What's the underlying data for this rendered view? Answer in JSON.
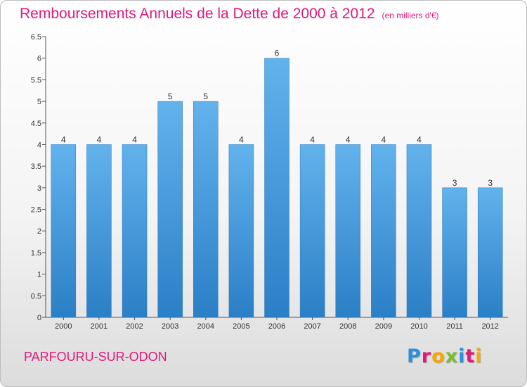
{
  "header": {
    "title": "Remboursements Annuels de la Dette de 2000 à 2012",
    "unit": "(en milliers d'€)"
  },
  "footer": {
    "city": "PARFOURU-SUR-ODON",
    "logo_letters": [
      "P",
      "r",
      "o",
      "x",
      "i",
      "t",
      "i"
    ],
    "logo_colors": [
      "#2f8fd8",
      "#e0197d",
      "#f5a800",
      "#7bbf2a",
      "#2f8fd8",
      "#e0197d",
      "#f5a800"
    ]
  },
  "chart_data": {
    "type": "bar",
    "categories": [
      "2000",
      "2001",
      "2002",
      "2003",
      "2004",
      "2005",
      "2006",
      "2007",
      "2008",
      "2009",
      "2010",
      "2011",
      "2012"
    ],
    "values": [
      4,
      4,
      4,
      5,
      5,
      4,
      6,
      4,
      4,
      4,
      4,
      3,
      3
    ],
    "value_labels": [
      "4",
      "4",
      "4",
      "5",
      "5",
      "4",
      "6",
      "4",
      "4",
      "4",
      "4",
      "3",
      "3"
    ],
    "y_ticks": [
      "0",
      "0.5",
      "1",
      "1.5",
      "2",
      "2.5",
      "3",
      "3.5",
      "4",
      "4.5",
      "5",
      "5.5",
      "6",
      "6.5"
    ],
    "ylim": [
      0,
      6.5
    ],
    "grid": false,
    "bar_color": "#4a9fe0"
  }
}
